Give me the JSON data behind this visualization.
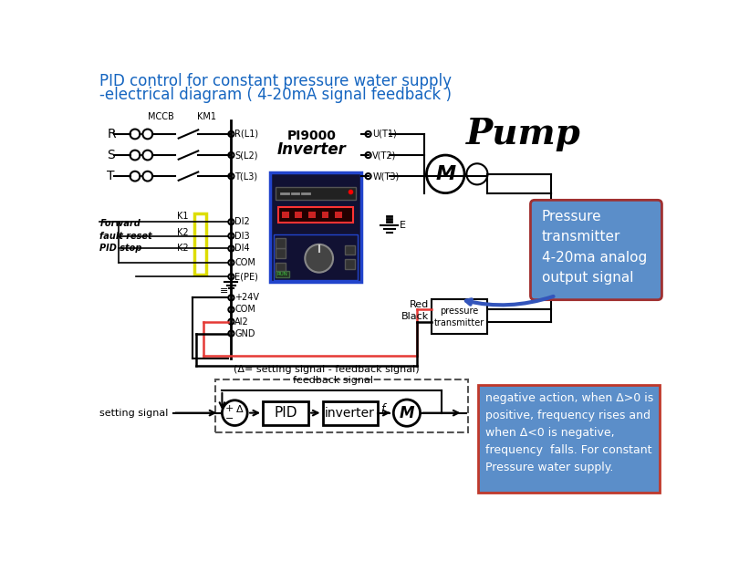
{
  "title_line1": "PID control for constant pressure water supply",
  "title_line2": "-electrical diagram ( 4-20mA signal feedback )",
  "title_color": "#1565C0",
  "title_fontsize": 12,
  "bg_color": "#ffffff",
  "pump_label": "Pump",
  "note_box_color": "#5b8ec9",
  "note_box_edge": "#a03030",
  "note_text": "Pressure\ntransmitter\n4-20ma analog\noutput signal",
  "note_text_color": "#ffffff",
  "note2_box_color": "#5b8ec9",
  "note2_box_edge": "#c0392b",
  "note2_text": "negative action, when Δ>0 is\npositive, frequency rises and\nwhen Δ<0 is negative,\nfrequency  falls. For constant\nPressure water supply.",
  "note2_text_color": "#ffffff",
  "red_wire_color": "#e53935",
  "black_wire_color": "#000000"
}
